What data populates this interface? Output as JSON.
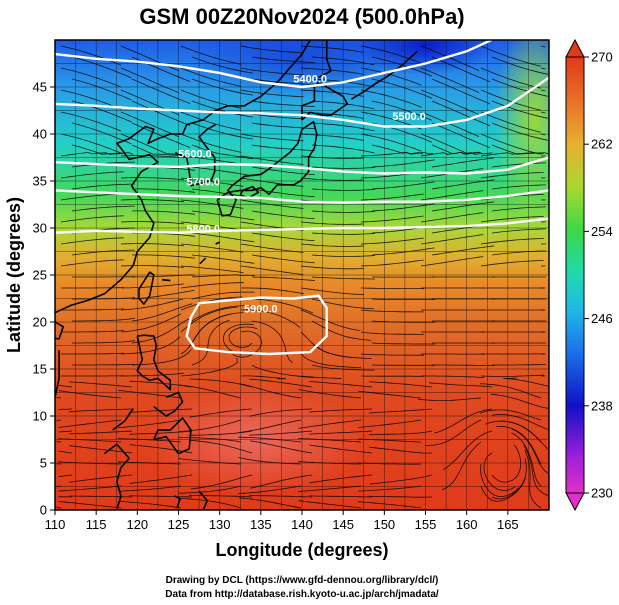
{
  "title": "GSM 00Z20Nov2024 (500.0hPa)",
  "xlabel": "Longitude (degrees)",
  "ylabel": "Latitude  (degrees)",
  "x_ticks": [
    "110",
    "115",
    "120",
    "125",
    "130",
    "135",
    "140",
    "145",
    "150",
    "155",
    "160",
    "165"
  ],
  "y_ticks": [
    "0",
    "5",
    "10",
    "15",
    "20",
    "25",
    "30",
    "35",
    "40",
    "45"
  ],
  "colorbar_ticks": [
    "230",
    "238",
    "246",
    "254",
    "262",
    "270"
  ],
  "contour_labels": [
    "5400.0",
    "5500.0",
    "5600.0",
    "5700.0",
    "5800.0",
    "5900.0"
  ],
  "credits": {
    "line1": "Drawing by DCL (https://www.gfd-dennou.org/library/dcl/)",
    "line2": "Data from http://database.rish.kyoto-u.ac.jp/arch/jmadata/"
  },
  "colors": {
    "cold": "#0000c8",
    "warm": "#e04020",
    "contour": "#ffffff",
    "coast": "#000000"
  },
  "map_data": {
    "lon_range": [
      110,
      170
    ],
    "lat_range": [
      0,
      50
    ],
    "colorbar_range": [
      230,
      270
    ],
    "field": "temperature (K) with geopotential height contours and wind streamlines",
    "contours": [
      {
        "value": "5400.0",
        "label_lon": 141,
        "label_lat": 45.5
      },
      {
        "value": "5500.0",
        "label_lon": 153,
        "label_lat": 41.5
      },
      {
        "value": "5600.0",
        "label_lon": 127,
        "label_lat": 37.5
      },
      {
        "value": "5700.0",
        "label_lon": 128,
        "label_lat": 34.5
      },
      {
        "value": "5800.0",
        "label_lon": 128,
        "label_lat": 29.5
      },
      {
        "value": "5900.0",
        "label_lon": 135,
        "label_lat": 21
      }
    ]
  }
}
